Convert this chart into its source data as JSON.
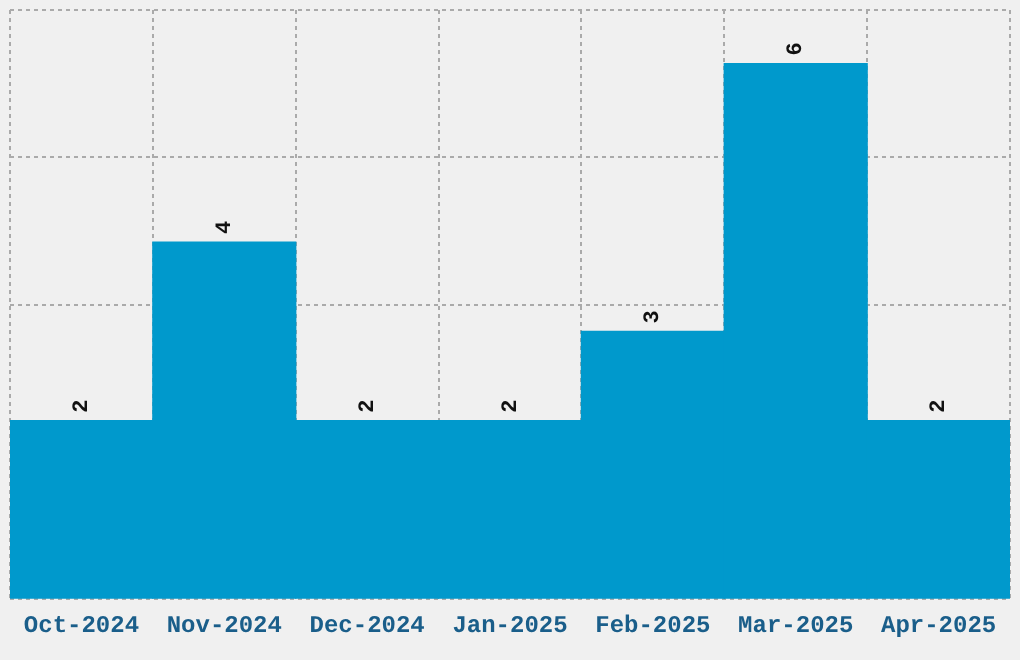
{
  "chart_data": {
    "type": "bar",
    "categories": [
      "Oct-2024",
      "Nov-2024",
      "Dec-2024",
      "Jan-2025",
      "Feb-2025",
      "Mar-2025",
      "Apr-2025"
    ],
    "values": [
      2,
      4,
      2,
      2,
      3,
      6,
      2
    ],
    "color": "#0099cc",
    "data_labels": true,
    "grid": true,
    "ylim": [
      0,
      6.6
    ],
    "tick_labels": "x"
  }
}
